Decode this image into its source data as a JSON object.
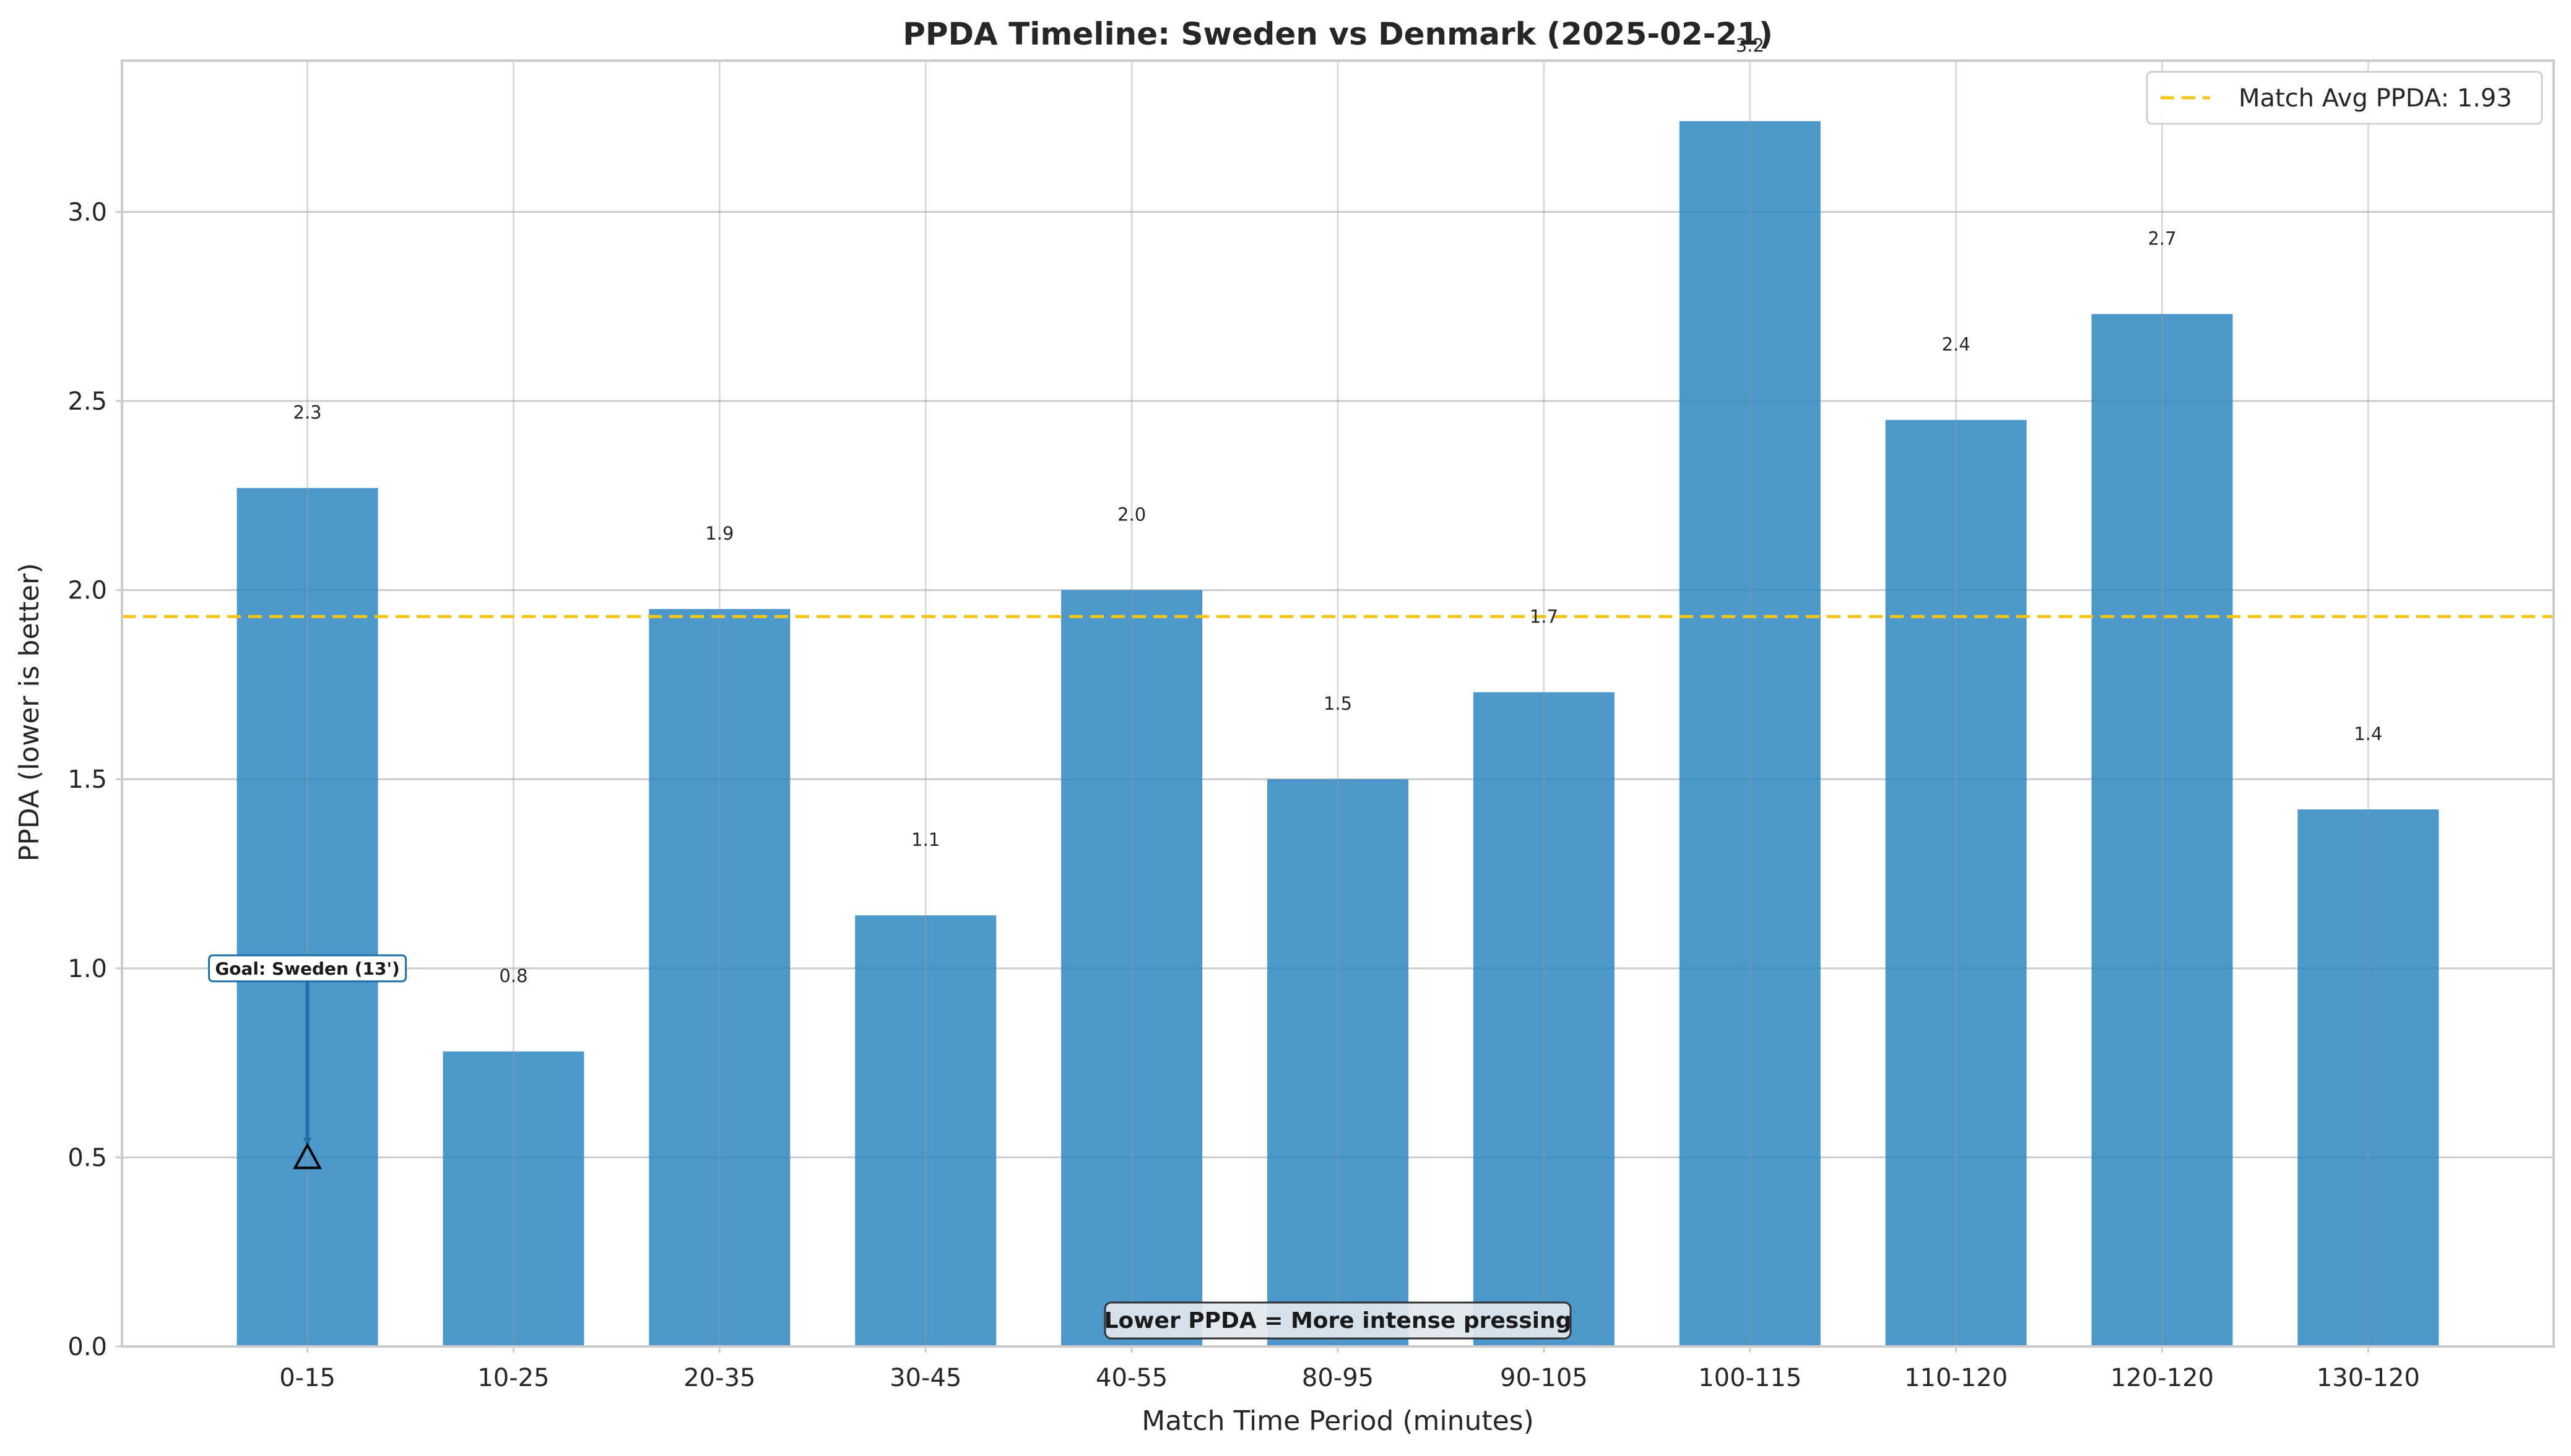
{
  "chart_data": {
    "type": "bar",
    "title": "PPDA Timeline: Sweden vs Denmark (2025-02-21)",
    "xlabel": "Match Time Period (minutes)",
    "ylabel": "PPDA (lower is better)",
    "categories": [
      "0-15",
      "10-25",
      "20-35",
      "30-45",
      "40-55",
      "80-95",
      "90-105",
      "100-115",
      "110-120",
      "120-120",
      "130-120"
    ],
    "values": [
      2.27,
      0.78,
      1.95,
      1.14,
      2.0,
      1.5,
      1.73,
      3.24,
      2.45,
      2.73,
      1.42
    ],
    "value_labels": [
      "2.3",
      "0.8",
      "1.9",
      "1.1",
      "2.0",
      "1.5",
      "1.7",
      "3.2",
      "2.4",
      "2.7",
      "1.4"
    ],
    "ylim": [
      0,
      3.4
    ],
    "yticks": [
      0.0,
      0.5,
      1.0,
      1.5,
      2.0,
      2.5,
      3.0
    ],
    "ytick_labels": [
      "0.0",
      "0.5",
      "1.0",
      "1.5",
      "2.0",
      "2.5",
      "3.0"
    ],
    "grid": true,
    "bar_color": "#2e86c1",
    "reference_line": {
      "value": 1.93,
      "label": "Match Avg PPDA: 1.93",
      "color": "#f5c518",
      "style": "dashed"
    },
    "legend_position": "top-right",
    "annotations": [
      {
        "text": "Goal: Sweden (13')",
        "category": "0-15",
        "marker_y": 0.5,
        "text_y": 1.0,
        "marker": "triangle",
        "color": "#1f6fa8"
      }
    ],
    "note": "Lower PPDA = More intense pressing"
  }
}
